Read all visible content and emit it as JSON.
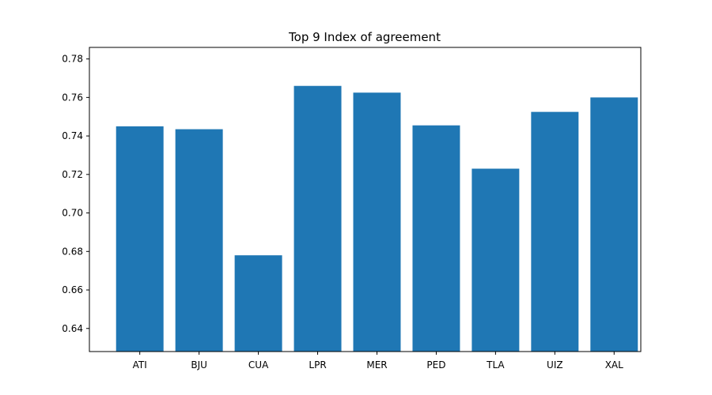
{
  "chart_data": {
    "type": "bar",
    "title": "Top 9 Index of agreement",
    "xlabel": "",
    "ylabel": "",
    "categories": [
      "ATI",
      "BJU",
      "CUA",
      "LPR",
      "MER",
      "PED",
      "TLA",
      "UIZ",
      "XAL"
    ],
    "values": [
      0.745,
      0.7435,
      0.678,
      0.766,
      0.7625,
      0.7455,
      0.723,
      0.7525,
      0.76
    ],
    "ylim": [
      0.628,
      0.786
    ],
    "yticks": [
      0.64,
      0.66,
      0.68,
      0.7,
      0.72,
      0.74,
      0.76,
      0.78
    ],
    "ytick_labels": [
      "0.64",
      "0.66",
      "0.68",
      "0.70",
      "0.72",
      "0.74",
      "0.76",
      "0.78"
    ],
    "grid": false,
    "legend": "none",
    "bar_color": "#1f77b4"
  }
}
